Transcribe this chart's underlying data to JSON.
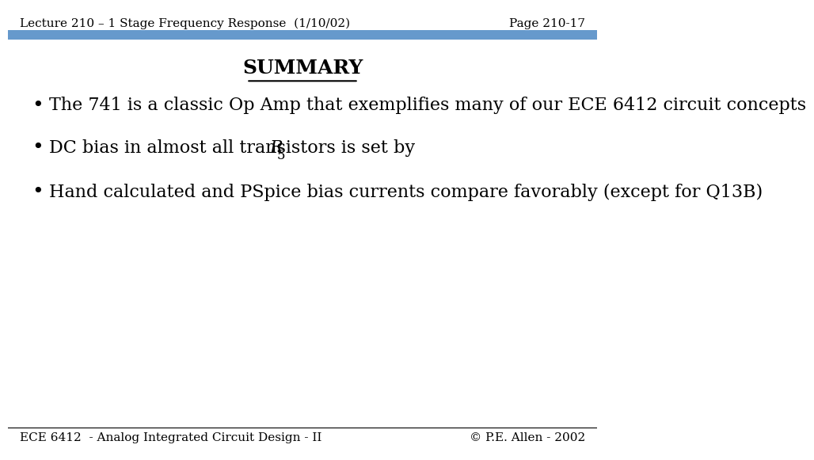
{
  "header_left": "Lecture 210 – 1 Stage Frequency Response  (1/10/02)",
  "header_right": "Page 210-17",
  "footer_left": "ECE 6412  - Analog Integrated Circuit Design - II",
  "footer_right": "© P.E. Allen - 2002",
  "header_bar_color": "#6699cc",
  "title": "SUMMARY",
  "bullet1": "The 741 is a classic Op Amp that exemplifies many of our ECE 6412 circuit concepts",
  "bullet2_pre": "DC bias in almost all transistors is set by ",
  "bullet2_r": "R",
  "bullet2_sub": "5",
  "bullet3": "Hand calculated and PSpice bias currents compare favorably (except for Q13B)",
  "header_fontsize": 11,
  "footer_fontsize": 11,
  "title_fontsize": 18,
  "bullet_fontsize": 16,
  "page_width": 9.6,
  "page_height": 7.29
}
